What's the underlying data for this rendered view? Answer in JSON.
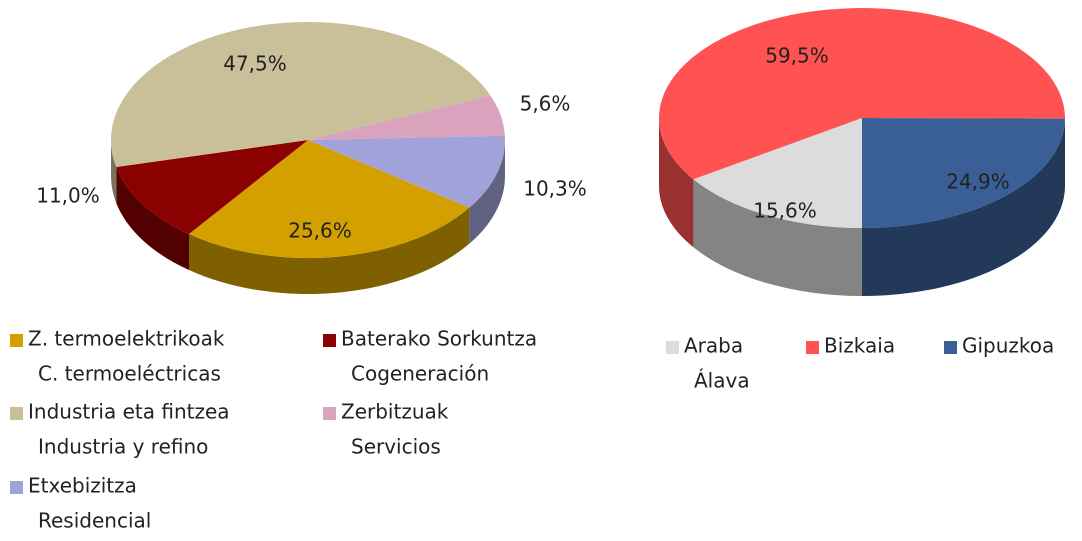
{
  "chart_data": [
    {
      "type": "pie",
      "categories": [
        "Z. termoelektrikoak",
        "Baterako Sorkuntza",
        "Industria eta fintzea",
        "Zerbitzuak",
        "Etxebizitza"
      ],
      "categories_alt": [
        "C. termoeléctricas",
        "Cogeneración",
        "Industria y refino",
        "Servicios",
        "Residencial"
      ],
      "values": [
        25.6,
        11.0,
        47.5,
        5.6,
        10.3
      ],
      "value_labels": [
        "25,6%",
        "11,0%",
        "47,5%",
        "5,6%",
        "10,3%"
      ],
      "colors": [
        "#d4a000",
        "#8b0000",
        "#c9bf98",
        "#d9a3bd",
        "#a1a2d9"
      ]
    },
    {
      "type": "pie",
      "categories": [
        "Araba",
        "Bizkaia",
        "Gipuzkoa"
      ],
      "categories_alt": [
        "Álava",
        null,
        null
      ],
      "values": [
        15.6,
        59.5,
        24.9
      ],
      "value_labels": [
        "15,6%",
        "59,5%",
        "24,9%"
      ],
      "colors": [
        "#dcdcdc",
        "#ff5252",
        "#3a5f96"
      ]
    }
  ]
}
